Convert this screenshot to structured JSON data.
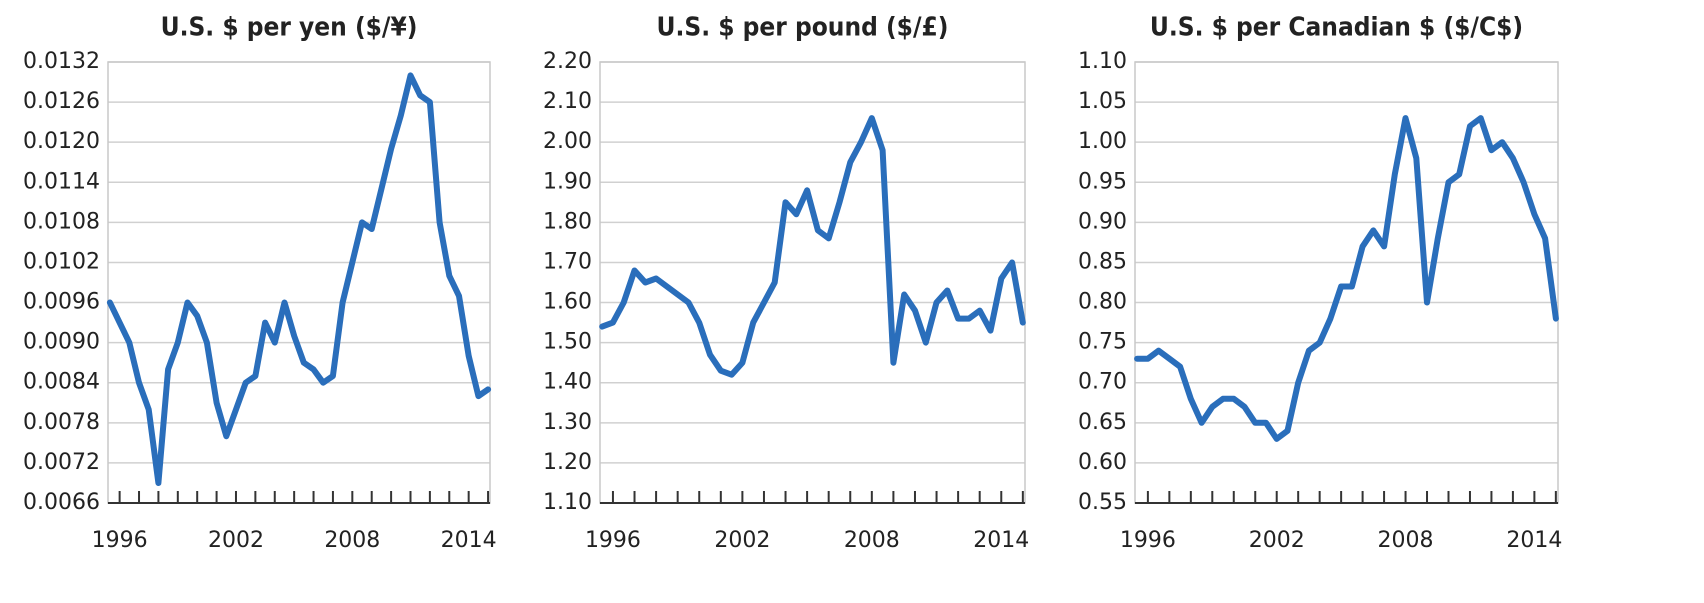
{
  "chart_data": [
    {
      "type": "line",
      "title": "U.S. $ per yen ($/¥)",
      "x": [
        1995.5,
        1996,
        1996.5,
        1997,
        1997.5,
        1998,
        1998.5,
        1999,
        1999.5,
        2000,
        2000.5,
        2001,
        2001.5,
        2002,
        2002.5,
        2003,
        2003.5,
        2004,
        2004.5,
        2005,
        2005.5,
        2006,
        2006.5,
        2007,
        2007.5,
        2008,
        2008.5,
        2009,
        2009.5,
        2010,
        2010.5,
        2011,
        2011.5,
        2012,
        2012.5,
        2013,
        2013.5,
        2014,
        2014.5,
        2015
      ],
      "series": [
        {
          "name": "U.S. $ per yen",
          "color": "#2a6ebb",
          "values": [
            0.0096,
            0.0093,
            0.009,
            0.0084,
            0.008,
            0.0069,
            0.0086,
            0.009,
            0.0096,
            0.0094,
            0.009,
            0.0081,
            0.0076,
            0.008,
            0.0084,
            0.0085,
            0.0093,
            0.009,
            0.0096,
            0.0091,
            0.0087,
            0.0086,
            0.0084,
            0.0085,
            0.0096,
            0.0102,
            0.0108,
            0.0107,
            0.0113,
            0.0119,
            0.0124,
            0.013,
            0.0127,
            0.0126,
            0.0108,
            0.01,
            0.0097,
            0.0088,
            0.0082,
            0.0083
          ]
        }
      ],
      "xlim": [
        1995.4,
        2015.1
      ],
      "xticks": [
        1996,
        2002,
        2008,
        2014
      ],
      "xminorticks": [
        1997,
        1998,
        1999,
        2000,
        2001,
        2003,
        2004,
        2005,
        2006,
        2007,
        2009,
        2010,
        2011,
        2012,
        2013,
        2015
      ],
      "ylim": [
        0.0066,
        0.0132
      ],
      "yticks": [
        {
          "value": 0.0066,
          "label": "0.0066"
        },
        {
          "value": 0.0072,
          "label": "0.0072"
        },
        {
          "value": 0.0078,
          "label": "0.0078"
        },
        {
          "value": 0.0084,
          "label": "0.0084"
        },
        {
          "value": 0.009,
          "label": "0.0090"
        },
        {
          "value": 0.0096,
          "label": "0.0096"
        },
        {
          "value": 0.0102,
          "label": "0.0102"
        },
        {
          "value": 0.0108,
          "label": "0.0108"
        },
        {
          "value": 0.0114,
          "label": "0.0114"
        },
        {
          "value": 0.012,
          "label": "0.0120"
        },
        {
          "value": 0.0126,
          "label": "0.0126"
        },
        {
          "value": 0.0132,
          "label": "0.0132"
        }
      ],
      "grid": true
    },
    {
      "type": "line",
      "title": "U.S. $ per pound ($/£)",
      "x": [
        1995.5,
        1996,
        1996.5,
        1997,
        1997.5,
        1998,
        1998.5,
        1999,
        1999.5,
        2000,
        2000.5,
        2001,
        2001.5,
        2002,
        2002.5,
        2003,
        2003.5,
        2004,
        2004.5,
        2005,
        2005.5,
        2006,
        2006.5,
        2007,
        2007.5,
        2008,
        2008.5,
        2009,
        2009.5,
        2010,
        2010.5,
        2011,
        2011.5,
        2012,
        2012.5,
        2013,
        2013.5,
        2014,
        2014.5,
        2015
      ],
      "series": [
        {
          "name": "U.S. $ per pound",
          "color": "#2a6ebb",
          "values": [
            1.54,
            1.55,
            1.6,
            1.68,
            1.65,
            1.66,
            1.64,
            1.62,
            1.6,
            1.55,
            1.47,
            1.43,
            1.42,
            1.45,
            1.55,
            1.6,
            1.65,
            1.85,
            1.82,
            1.88,
            1.78,
            1.76,
            1.85,
            1.95,
            2.0,
            2.06,
            1.98,
            1.45,
            1.62,
            1.58,
            1.5,
            1.6,
            1.63,
            1.56,
            1.56,
            1.58,
            1.53,
            1.66,
            1.7,
            1.55
          ]
        }
      ],
      "xlim": [
        1995.4,
        2015.1
      ],
      "xticks": [
        1996,
        2002,
        2008,
        2014
      ],
      "xminorticks": [
        1997,
        1998,
        1999,
        2000,
        2001,
        2003,
        2004,
        2005,
        2006,
        2007,
        2009,
        2010,
        2011,
        2012,
        2013,
        2015
      ],
      "ylim": [
        1.1,
        2.2
      ],
      "yticks": [
        {
          "value": 1.1,
          "label": "1.10"
        },
        {
          "value": 1.2,
          "label": "1.20"
        },
        {
          "value": 1.3,
          "label": "1.30"
        },
        {
          "value": 1.4,
          "label": "1.40"
        },
        {
          "value": 1.5,
          "label": "1.50"
        },
        {
          "value": 1.6,
          "label": "1.60"
        },
        {
          "value": 1.7,
          "label": "1.70"
        },
        {
          "value": 1.8,
          "label": "1.80"
        },
        {
          "value": 1.9,
          "label": "1.90"
        },
        {
          "value": 2.0,
          "label": "2.00"
        },
        {
          "value": 2.1,
          "label": "2.10"
        },
        {
          "value": 2.2,
          "label": "2.20"
        }
      ],
      "grid": true
    },
    {
      "type": "line",
      "title": "U.S. $ per Canadian $ ($/C$)",
      "x": [
        1995.5,
        1996,
        1996.5,
        1997,
        1997.5,
        1998,
        1998.5,
        1999,
        1999.5,
        2000,
        2000.5,
        2001,
        2001.5,
        2002,
        2002.5,
        2003,
        2003.5,
        2004,
        2004.5,
        2005,
        2005.5,
        2006,
        2006.5,
        2007,
        2007.5,
        2008,
        2008.5,
        2009,
        2009.5,
        2010,
        2010.5,
        2011,
        2011.5,
        2012,
        2012.5,
        2013,
        2013.5,
        2014,
        2014.5,
        2015
      ],
      "series": [
        {
          "name": "U.S. $ per Canadian $",
          "color": "#2a6ebb",
          "values": [
            0.73,
            0.73,
            0.74,
            0.73,
            0.72,
            0.68,
            0.65,
            0.67,
            0.68,
            0.68,
            0.67,
            0.65,
            0.65,
            0.63,
            0.64,
            0.7,
            0.74,
            0.75,
            0.78,
            0.82,
            0.82,
            0.87,
            0.89,
            0.87,
            0.96,
            1.03,
            0.98,
            0.8,
            0.88,
            0.95,
            0.96,
            1.02,
            1.03,
            0.99,
            1.0,
            0.98,
            0.95,
            0.91,
            0.88,
            0.78
          ]
        }
      ],
      "xlim": [
        1995.4,
        2015.1
      ],
      "xticks": [
        1996,
        2002,
        2008,
        2014
      ],
      "xminorticks": [
        1997,
        1998,
        1999,
        2000,
        2001,
        2003,
        2004,
        2005,
        2006,
        2007,
        2009,
        2010,
        2011,
        2012,
        2013,
        2015
      ],
      "ylim": [
        0.55,
        1.1
      ],
      "yticks": [
        {
          "value": 0.55,
          "label": "0.55"
        },
        {
          "value": 0.6,
          "label": "0.60"
        },
        {
          "value": 0.65,
          "label": "0.65"
        },
        {
          "value": 0.7,
          "label": "0.70"
        },
        {
          "value": 0.75,
          "label": "0.75"
        },
        {
          "value": 0.8,
          "label": "0.80"
        },
        {
          "value": 0.85,
          "label": "0.85"
        },
        {
          "value": 0.9,
          "label": "0.90"
        },
        {
          "value": 0.95,
          "label": "0.95"
        },
        {
          "value": 1.0,
          "label": "1.00"
        },
        {
          "value": 1.05,
          "label": "1.05"
        },
        {
          "value": 1.1,
          "label": "1.10"
        }
      ],
      "grid": true
    }
  ]
}
